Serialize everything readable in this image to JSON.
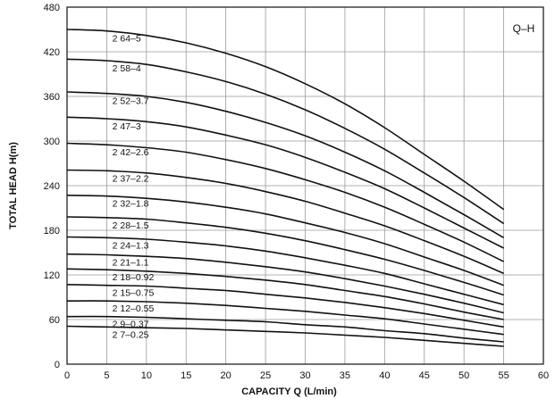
{
  "chart_data": {
    "type": "line",
    "title": "Q–H",
    "xlabel": "CAPACITY  Q (L/min)",
    "ylabel": "TOTAL HEAD  H(m)",
    "xlim": [
      0,
      60
    ],
    "ylim": [
      0,
      480
    ],
    "x_ticks": [
      "0",
      "5",
      "10",
      "15",
      "20",
      "25",
      "30",
      "35",
      "40",
      "45",
      "50",
      "55",
      "60"
    ],
    "y_ticks": [
      "0",
      "60",
      "120",
      "180",
      "240",
      "300",
      "360",
      "420",
      "480"
    ],
    "grid": true,
    "colors": {
      "line": "#111111",
      "grid": "#9a9a9a",
      "axis": "#111111",
      "background": "#ffffff"
    },
    "series": [
      {
        "name": "2 64–5",
        "x": [
          0,
          5,
          10,
          15,
          20,
          25,
          30,
          35,
          40,
          45,
          50,
          55
        ],
        "y": [
          450,
          448,
          442,
          432,
          418,
          400,
          377,
          350,
          318,
          282,
          246,
          208
        ]
      },
      {
        "name": "2 58–4",
        "x": [
          0,
          5,
          10,
          15,
          20,
          25,
          30,
          35,
          40,
          45,
          50,
          55
        ],
        "y": [
          410,
          408,
          403,
          393,
          380,
          363,
          342,
          317,
          289,
          257,
          224,
          189
        ]
      },
      {
        "name": "2 52–3.7",
        "x": [
          0,
          5,
          10,
          15,
          20,
          25,
          30,
          35,
          40,
          45,
          50,
          55
        ],
        "y": [
          366,
          364,
          360,
          352,
          340,
          325,
          307,
          285,
          260,
          231,
          201,
          170
        ]
      },
      {
        "name": "2 47–3",
        "x": [
          0,
          5,
          10,
          15,
          20,
          25,
          30,
          35,
          40,
          45,
          50,
          55
        ],
        "y": [
          332,
          330,
          326,
          319,
          308,
          295,
          278,
          258,
          236,
          210,
          183,
          156
        ]
      },
      {
        "name": "2 42–2.6",
        "x": [
          0,
          5,
          10,
          15,
          20,
          25,
          30,
          35,
          40,
          45,
          50,
          55
        ],
        "y": [
          297,
          295,
          291,
          285,
          275,
          263,
          248,
          231,
          211,
          188,
          164,
          138
        ]
      },
      {
        "name": "2 37–2.2",
        "x": [
          0,
          5,
          10,
          15,
          20,
          25,
          30,
          35,
          40,
          45,
          50,
          55
        ],
        "y": [
          261,
          260,
          257,
          251,
          243,
          232,
          219,
          203,
          186,
          166,
          145,
          122
        ]
      },
      {
        "name": "2 32–1.8",
        "x": [
          0,
          5,
          10,
          15,
          20,
          25,
          30,
          35,
          40,
          45,
          50,
          55
        ],
        "y": [
          227,
          226,
          223,
          218,
          211,
          202,
          190,
          177,
          162,
          144,
          126,
          106
        ]
      },
      {
        "name": "2 28–1.5",
        "x": [
          0,
          5,
          10,
          15,
          20,
          25,
          30,
          35,
          40,
          45,
          50,
          55
        ],
        "y": [
          198,
          197,
          195,
          190,
          184,
          176,
          166,
          154,
          141,
          126,
          110,
          93
        ]
      },
      {
        "name": "2 24–1.3",
        "x": [
          0,
          5,
          10,
          15,
          20,
          25,
          30,
          35,
          40,
          45,
          50,
          55
        ],
        "y": [
          171,
          170,
          168,
          164,
          159,
          152,
          143,
          133,
          122,
          108,
          94,
          80
        ]
      },
      {
        "name": "2 21–1.1",
        "x": [
          0,
          5,
          10,
          15,
          20,
          25,
          30,
          35,
          40,
          45,
          50,
          55
        ],
        "y": [
          148,
          147,
          145,
          142,
          137,
          131,
          124,
          115,
          105,
          94,
          82,
          69
        ]
      },
      {
        "name": "2 18–0.92",
        "x": [
          0,
          5,
          10,
          15,
          20,
          25,
          30,
          35,
          40,
          45,
          50,
          55
        ],
        "y": [
          128,
          127,
          125,
          122,
          118,
          113,
          107,
          99,
          91,
          81,
          70,
          60
        ]
      },
      {
        "name": "2 15–0.75",
        "x": [
          0,
          5,
          10,
          15,
          20,
          25,
          30,
          35,
          40,
          45,
          50,
          55
        ],
        "y": [
          107,
          106,
          105,
          102,
          99,
          94,
          89,
          83,
          76,
          68,
          59,
          50
        ]
      },
      {
        "name": "2 12–0.55",
        "x": [
          0,
          5,
          10,
          15,
          20,
          25,
          30,
          35,
          40,
          45,
          50,
          55
        ],
        "y": [
          85,
          85,
          84,
          82,
          79,
          75,
          71,
          66,
          61,
          54,
          47,
          40
        ]
      },
      {
        "name": "2 9–0.37",
        "x": [
          0,
          5,
          10,
          15,
          20,
          25,
          30,
          35,
          40,
          45,
          50,
          55
        ],
        "y": [
          64,
          64,
          63,
          61,
          59,
          57,
          53,
          50,
          45,
          41,
          35,
          30
        ]
      },
      {
        "name": "2 7–0.25",
        "x": [
          0,
          5,
          10,
          15,
          20,
          25,
          30,
          35,
          40,
          45,
          50,
          55
        ],
        "y": [
          51,
          50,
          49,
          48,
          46,
          44,
          42,
          39,
          36,
          32,
          28,
          24
        ]
      }
    ]
  }
}
